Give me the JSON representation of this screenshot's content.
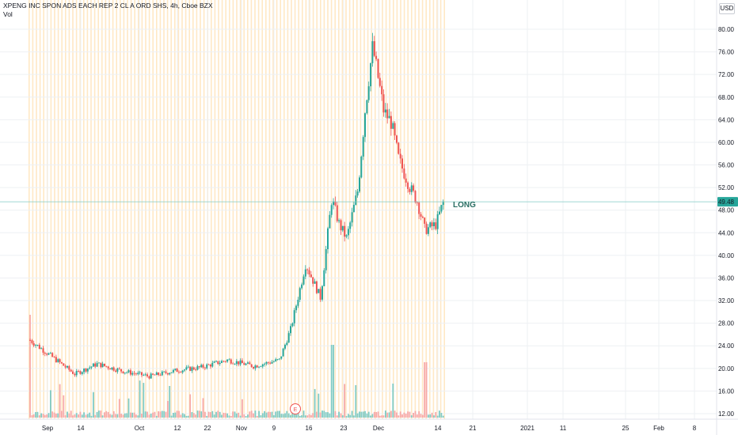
{
  "header": {
    "symbol_line": "XPENG INC SPON ADS EACH REP 2 CL A ORD SHS, 4h, Cboe BZX",
    "volume_label": "Vol"
  },
  "currency_button": "USD",
  "annotation": {
    "text": "LONG",
    "color": "#2a6e63"
  },
  "event_marker": "E",
  "current_price_label": "49.48",
  "colors": {
    "up": "#26a69a",
    "down": "#ef5350",
    "vol_up": "#80cbc4",
    "vol_down": "#f7a9a7",
    "session_stripe": "#ffe0b2",
    "grid": "#eef0f3",
    "price_line": "#80cbc4",
    "price_badge": "#26a69a"
  },
  "chart_data": {
    "type": "candlestick",
    "title": "XPENG INC SPON ADS EACH REP 2 CL A ORD SHS, 4h, Cboe BZX",
    "ylim": [
      11,
      82
    ],
    "grid": true,
    "y_ticks": [
      "12.00",
      "16.00",
      "20.00",
      "24.00",
      "28.00",
      "32.00",
      "36.00",
      "40.00",
      "44.00",
      "48.00",
      "52.00",
      "56.00",
      "60.00",
      "64.00",
      "68.00",
      "72.00",
      "76.00",
      "80.00"
    ],
    "x_ticks": [
      "Sep",
      "14",
      "Oct",
      "12",
      "22",
      "Nov",
      "9",
      "16",
      "23",
      "Dec",
      "14",
      "21",
      "2021",
      "11",
      "25",
      "Feb",
      "8"
    ],
    "last_price": 49.48,
    "price_points": [
      [
        "Aug 27",
        25.0
      ],
      [
        "Sep 1",
        22.5
      ],
      [
        "Sep 8",
        19.0
      ],
      [
        "Sep 14",
        20.8
      ],
      [
        "Sep 21",
        19.5
      ],
      [
        "Sep 28",
        18.6
      ],
      [
        "Oct 5",
        19.6
      ],
      [
        "Oct 12",
        20.2
      ],
      [
        "Oct 19",
        21.5
      ],
      [
        "Oct 26",
        20.4
      ],
      [
        "Nov 2",
        21.5
      ],
      [
        "Nov 5",
        27.0
      ],
      [
        "Nov 9",
        38.5
      ],
      [
        "Nov 11",
        35.5
      ],
      [
        "Nov 13",
        32.5
      ],
      [
        "Nov 16",
        50.0
      ],
      [
        "Nov 18",
        45.5
      ],
      [
        "Nov 20",
        43.0
      ],
      [
        "Nov 23",
        51.5
      ],
      [
        "Nov 24",
        58.5
      ],
      [
        "Nov 25",
        66.0
      ],
      [
        "Nov 27",
        77.0
      ],
      [
        "Nov 30",
        65.5
      ],
      [
        "Dec 2",
        63.5
      ],
      [
        "Dec 4",
        57.0
      ],
      [
        "Dec 7",
        52.0
      ],
      [
        "Dec 9",
        49.5
      ],
      [
        "Dec 11",
        44.5
      ],
      [
        "Dec 14",
        45.5
      ],
      [
        "Dec 16",
        49.5
      ]
    ],
    "volume_peaks": [
      [
        "Aug 27",
        3.0
      ],
      [
        "Nov 16",
        3.2
      ],
      [
        "Dec 11",
        2.1
      ]
    ]
  }
}
